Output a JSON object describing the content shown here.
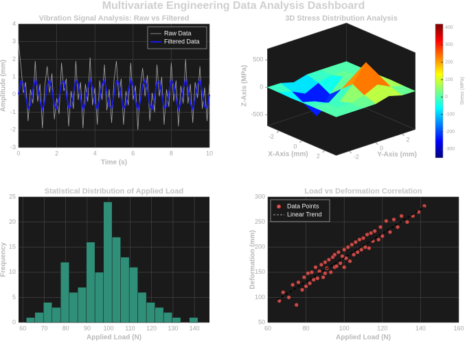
{
  "title": "Multivariate Engineering Data Analysis Dashboard",
  "chart_data": [
    {
      "type": "line",
      "title": "Vibration Signal Analysis: Raw vs Filtered",
      "xlabel": "Time (s)",
      "ylabel": "Amplitude (mm)",
      "x": [
        0,
        0.125,
        0.25,
        0.375,
        0.5,
        0.625,
        0.75,
        0.875,
        1,
        1.125,
        1.25,
        1.375,
        1.5,
        1.625,
        1.75,
        1.875,
        2,
        2.125,
        2.25,
        2.375,
        2.5,
        2.625,
        2.75,
        2.875,
        3,
        3.125,
        3.25,
        3.375,
        3.5,
        3.625,
        3.75,
        3.875,
        4,
        4.125,
        4.25,
        4.375,
        4.5,
        4.625,
        4.75,
        4.875,
        5,
        5.125,
        5.25,
        5.375,
        5.5,
        5.625,
        5.75,
        5.875,
        6,
        6.125,
        6.25,
        6.375,
        6.5,
        6.625,
        6.75,
        6.875,
        7,
        7.125,
        7.25,
        7.375,
        7.5,
        7.625,
        7.75,
        7.875,
        8,
        8.125,
        8.25,
        8.375,
        8.5,
        8.625,
        8.75,
        8.875,
        9,
        9.125,
        9.25,
        9.375,
        9.5,
        9.625,
        9.75,
        9.875,
        10
      ],
      "series": [
        {
          "name": "Raw Data",
          "color": "#a8a8a8",
          "linewidth": 0.8,
          "values": [
            2.9,
            1.6,
            0.1,
            0.7,
            -1.5,
            0.3,
            -0.5,
            1.9,
            -0.4,
            0.6,
            -1.9,
            0.5,
            1.6,
            0.1,
            1.2,
            -1.4,
            -0.2,
            -1.1,
            1.8,
            0.2,
            0.9,
            -1.8,
            0.2,
            -0.8,
            1.9,
            -0.3,
            0.7,
            -1.9,
            0.6,
            -0.4,
            2.1,
            -0.6,
            0.4,
            -1.7,
            0.8,
            -0.3,
            1.7,
            -0.9,
            0.3,
            -1.6,
            0.8,
            1.9,
            -0.2,
            0.9,
            -1.7,
            0.2,
            -0.6,
            1.8,
            -0.3,
            0.5,
            -2.0,
            0.4,
            1.5,
            -0.1,
            1.1,
            -1.5,
            0.1,
            -1.0,
            1.7,
            -0.1,
            1.0,
            -1.7,
            0.3,
            -0.7,
            1.8,
            -0.4,
            0.8,
            -1.8,
            0.5,
            -0.5,
            2.0,
            -0.5,
            0.6,
            -1.6,
            0.7,
            -0.2,
            1.6,
            -0.8,
            0.4,
            -1.5,
            0.6
          ]
        },
        {
          "name": "Filtered Data",
          "color": "#1a1ae6",
          "linewidth": 2,
          "values": [
            0,
            0.76,
            0.69,
            -0.13,
            -0.81,
            -0.6,
            0.26,
            0.84,
            0.5,
            -0.39,
            -0.85,
            -0.39,
            0.5,
            0.84,
            0.26,
            -0.6,
            -0.81,
            -0.13,
            0.69,
            0.76,
            0,
            -0.76,
            -0.69,
            0.13,
            0.81,
            0.6,
            -0.26,
            -0.84,
            -0.5,
            0.39,
            0.85,
            0.39,
            -0.5,
            -0.84,
            -0.26,
            0.6,
            0.81,
            0.13,
            -0.69,
            -0.76,
            0,
            0.76,
            0.69,
            -0.13,
            -0.81,
            -0.6,
            0.26,
            0.84,
            0.5,
            -0.39,
            -0.85,
            -0.39,
            0.5,
            0.84,
            0.26,
            -0.6,
            -0.81,
            -0.13,
            0.69,
            0.76,
            0,
            -0.76,
            -0.69,
            0.13,
            0.81,
            0.6,
            -0.26,
            -0.84,
            -0.5,
            0.39,
            0.85,
            0.39,
            -0.5,
            -0.84,
            -0.26,
            0.6,
            0.81,
            0.13,
            -0.69,
            -0.76,
            0
          ]
        }
      ],
      "xlim": [
        0,
        10
      ],
      "ylim": [
        -3,
        4
      ],
      "xticks": [
        0,
        2,
        4,
        6,
        8,
        10
      ],
      "yticks": [
        -3,
        -2,
        -1,
        0,
        1,
        2,
        3,
        4
      ],
      "grid": true,
      "legend": "upper right"
    },
    {
      "type": "surface",
      "title": "3D Stress Distribution Analysis",
      "xlabel": "X-Axis (mm)",
      "ylabel": "Y-Axis (mm)",
      "zlabel": "Z-Axis (MPa)",
      "x": [
        -3,
        -2,
        -1,
        0,
        1,
        2,
        3
      ],
      "y": [
        -3,
        -2,
        -1,
        0,
        1,
        2,
        3
      ],
      "z": [
        [
          0,
          -3,
          -9,
          -3,
          0,
          0,
          0
        ],
        [
          -3,
          -68,
          -184,
          -68,
          -3,
          0,
          0
        ],
        [
          -68,
          -184,
          -500,
          -181,
          -59,
          3,
          0
        ],
        [
          -3,
          -68,
          -181,
          0,
          181,
          68,
          3
        ],
        [
          0,
          -3,
          59,
          181,
          500,
          184,
          68
        ],
        [
          0,
          0,
          3,
          68,
          184,
          68,
          3
        ],
        [
          0,
          0,
          0,
          3,
          9,
          3,
          0
        ]
      ],
      "xlim": [
        -3,
        3
      ],
      "ylim": [
        -3,
        3
      ],
      "zlim": [
        -700,
        700
      ],
      "xticks": [
        -2,
        0,
        2
      ],
      "yticks": [
        -2,
        0,
        2
      ],
      "zticks": [
        -500,
        0,
        500
      ],
      "clim": [
        -350,
        420
      ],
      "colorbar_label": "Stress (MPa)",
      "colorbar_ticks": [
        -300,
        -200,
        -100,
        0,
        100,
        200,
        300,
        400
      ],
      "colormap": "jet"
    },
    {
      "type": "histogram",
      "title": "Statistical Distribution of Applied Load",
      "xlabel": "Applied Load (N)",
      "ylabel": "Frequency",
      "bins": [
        61.6,
        65.6,
        69.6,
        73.6,
        77.6,
        81.6,
        85.6,
        89.6,
        93.6,
        97.6,
        101.6,
        105.6,
        109.6,
        113.6,
        117.6,
        121.6,
        125.6,
        129.6,
        133.6,
        137.6,
        141.6
      ],
      "counts": [
        1,
        2,
        4,
        3,
        12,
        6,
        7,
        16,
        10,
        24,
        17,
        13,
        11,
        6,
        4,
        3,
        2,
        1,
        0,
        1
      ],
      "color": "#2f8f78",
      "xlim": [
        58,
        147
      ],
      "ylim": [
        0,
        25
      ],
      "xticks": [
        60,
        70,
        80,
        90,
        100,
        110,
        120,
        130,
        140
      ],
      "yticks": [
        0,
        5,
        10,
        15,
        20,
        25
      ],
      "grid": true
    },
    {
      "type": "scatter",
      "title": "Load vs Deformation Correlation",
      "xlabel": "Applied Load (N)",
      "ylabel": "Deformation (mm)",
      "series": [
        {
          "name": "Data Points",
          "mode": "markers",
          "color": "#d9534f",
          "x": [
            66,
            68,
            71,
            73,
            75,
            76,
            78,
            79,
            80,
            81,
            82,
            83,
            84,
            85,
            86,
            87,
            88,
            89,
            90,
            90,
            91,
            92,
            93,
            94,
            95,
            95,
            96,
            97,
            98,
            99,
            100,
            100,
            101,
            102,
            103,
            104,
            105,
            106,
            107,
            108,
            109,
            110,
            111,
            112,
            113,
            114,
            115,
            116,
            118,
            119,
            120,
            122,
            124,
            126,
            128,
            130,
            133,
            136,
            139,
            142
          ],
          "y": [
            93,
            110,
            100,
            125,
            85,
            130,
            115,
            140,
            122,
            148,
            128,
            150,
            135,
            160,
            138,
            152,
            165,
            140,
            170,
            148,
            158,
            175,
            150,
            180,
            160,
            185,
            162,
            190,
            168,
            182,
            160,
            195,
            178,
            200,
            172,
            205,
            185,
            210,
            190,
            215,
            195,
            218,
            200,
            225,
            198,
            228,
            212,
            232,
            215,
            240,
            222,
            252,
            230,
            255,
            240,
            262,
            250,
            262,
            270,
            282
          ]
        },
        {
          "name": "Linear Trend",
          "mode": "line",
          "color": "#000000",
          "x": [
            65,
            142
          ],
          "y": [
            95,
            280
          ]
        }
      ],
      "xlim": [
        60,
        160
      ],
      "ylim": [
        50,
        300
      ],
      "xticks": [
        60,
        80,
        100,
        120,
        140,
        160
      ],
      "yticks": [
        50,
        100,
        150,
        200,
        250,
        300
      ],
      "grid": true,
      "legend": "upper left"
    }
  ]
}
